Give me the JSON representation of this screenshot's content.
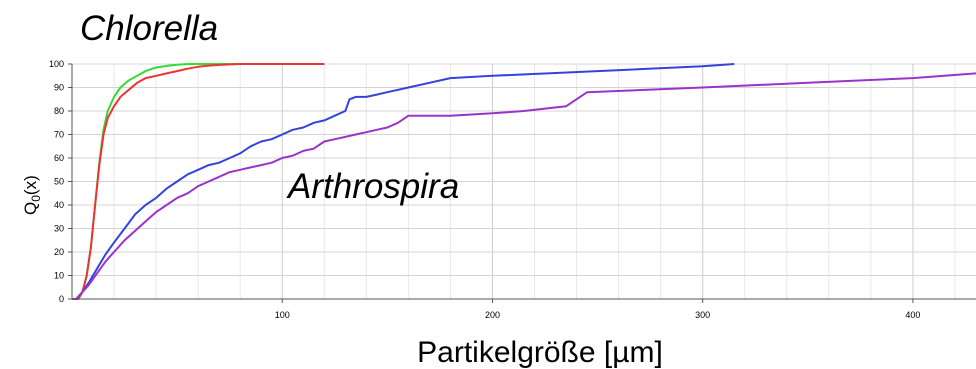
{
  "chart_data": {
    "type": "line",
    "xlabel": "Partikelgröße [µm]",
    "ylabel": "Q",
    "ylabel_sub": "0",
    "ylabel_suffix": "(x)",
    "xlim": [
      0,
      430
    ],
    "ylim": [
      0,
      100
    ],
    "x_ticks": [
      100,
      200,
      300,
      400
    ],
    "y_ticks": [
      0,
      10,
      20,
      30,
      40,
      50,
      60,
      70,
      80,
      90,
      100
    ],
    "grid": true,
    "annotations": [
      {
        "text": "Chlorella"
      },
      {
        "text": "Arthrospira"
      }
    ],
    "series": [
      {
        "color": "#33dd33",
        "x": [
          0,
          3,
          5,
          7,
          9,
          11,
          13,
          15,
          17,
          20,
          23,
          27,
          31,
          35,
          40,
          45,
          50,
          55,
          60,
          80,
          120
        ],
        "y": [
          0,
          0,
          3,
          10,
          22,
          40,
          58,
          72,
          80,
          86,
          90,
          93,
          95,
          97,
          98.5,
          99.2,
          99.7,
          100,
          100,
          100,
          100
        ]
      },
      {
        "color": "#ee3333",
        "x": [
          0,
          3,
          5,
          7,
          9,
          11,
          13,
          15,
          17,
          20,
          23,
          27,
          31,
          35,
          40,
          45,
          50,
          55,
          60,
          65,
          70,
          80,
          100,
          120
        ],
        "y": [
          0,
          0,
          3,
          10,
          22,
          40,
          57,
          70,
          77,
          82,
          86,
          89,
          92,
          94,
          95,
          96,
          97,
          98,
          98.8,
          99.3,
          99.6,
          100,
          100,
          100
        ]
      },
      {
        "color": "#3344dd",
        "x": [
          0,
          2,
          5,
          8,
          12,
          16,
          20,
          25,
          30,
          35,
          40,
          45,
          50,
          55,
          60,
          65,
          70,
          75,
          80,
          85,
          90,
          95,
          100,
          105,
          110,
          115,
          120,
          125,
          130,
          132,
          135,
          140,
          145,
          150,
          160,
          170,
          180,
          200,
          250,
          300,
          315
        ],
        "y": [
          0,
          0,
          3,
          7,
          13,
          19,
          24,
          30,
          36,
          40,
          43,
          47,
          50,
          53,
          55,
          57,
          58,
          60,
          62,
          65,
          67,
          68,
          70,
          72,
          73,
          75,
          76,
          78,
          80,
          85,
          86,
          86,
          87,
          88,
          90,
          92,
          94,
          95,
          97,
          99,
          100
        ]
      },
      {
        "color": "#9933cc",
        "x": [
          0,
          2,
          5,
          8,
          12,
          16,
          20,
          25,
          30,
          35,
          40,
          45,
          50,
          55,
          60,
          65,
          70,
          75,
          80,
          85,
          90,
          95,
          100,
          105,
          110,
          115,
          120,
          125,
          130,
          135,
          140,
          145,
          150,
          155,
          160,
          180,
          200,
          215,
          235,
          245,
          300,
          350,
          400,
          430
        ],
        "y": [
          0,
          0,
          3,
          6,
          11,
          16,
          20,
          25,
          29,
          33,
          37,
          40,
          43,
          45,
          48,
          50,
          52,
          54,
          55,
          56,
          57,
          58,
          60,
          61,
          63,
          64,
          67,
          68,
          69,
          70,
          71,
          72,
          73,
          75,
          78,
          78,
          79,
          80,
          82,
          88,
          90,
          92,
          94,
          96
        ]
      }
    ]
  }
}
